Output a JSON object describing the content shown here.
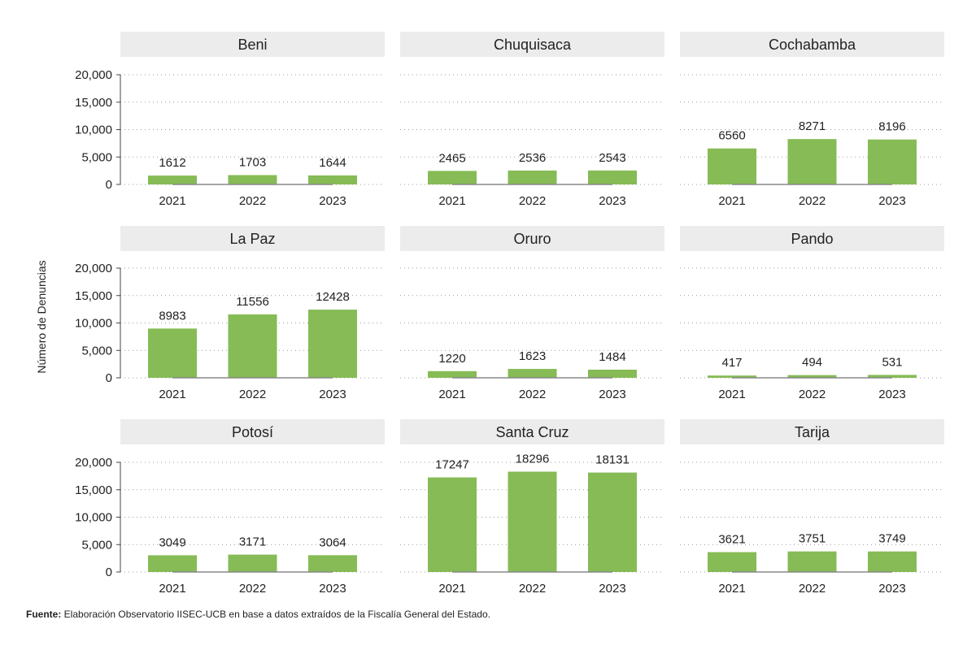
{
  "chart_data": {
    "type": "bar",
    "ylabel": "Número de Denuncias",
    "ylim": [
      0,
      20000
    ],
    "yticks": [
      0,
      5000,
      10000,
      15000,
      20000
    ],
    "ytick_labels": [
      "0",
      "5,000",
      "10,000",
      "15,000",
      "20,000"
    ],
    "categories": [
      "2021",
      "2022",
      "2023"
    ],
    "grid": "horizontal dotted",
    "bar_color": "#86bb55",
    "strip_color": "#ececec",
    "panels": [
      {
        "name": "Beni",
        "values": [
          1612,
          1703,
          1644
        ]
      },
      {
        "name": "Chuquisaca",
        "values": [
          2465,
          2536,
          2543
        ]
      },
      {
        "name": "Cochabamba",
        "values": [
          6560,
          8271,
          8196
        ]
      },
      {
        "name": "La Paz",
        "values": [
          8983,
          11556,
          12428
        ]
      },
      {
        "name": "Oruro",
        "values": [
          1220,
          1623,
          1484
        ]
      },
      {
        "name": "Pando",
        "values": [
          417,
          494,
          531
        ]
      },
      {
        "name": "Potosí",
        "values": [
          3049,
          3171,
          3064
        ]
      },
      {
        "name": "Santa Cruz",
        "values": [
          17247,
          18296,
          18131
        ]
      },
      {
        "name": "Tarija",
        "values": [
          3621,
          3751,
          3749
        ]
      }
    ]
  },
  "footer": {
    "label": "Fuente:",
    "text": " Elaboración Observatorio IISEC-UCB en base a datos extraídos de la Fiscalía General del Estado."
  }
}
